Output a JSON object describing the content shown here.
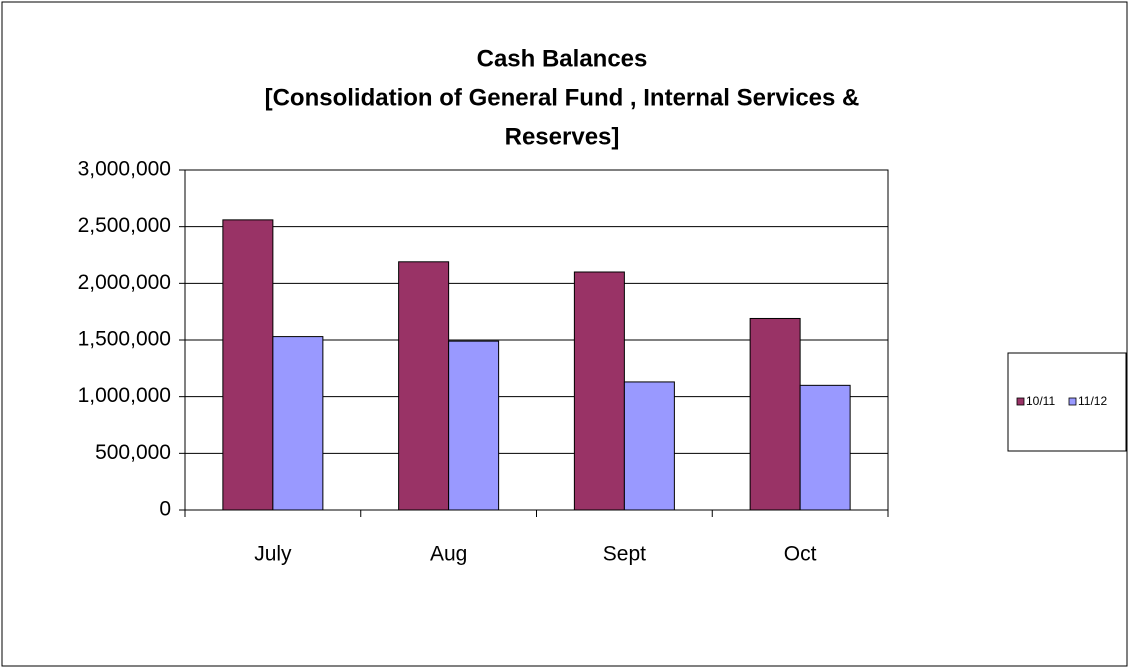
{
  "chart_data": {
    "type": "bar",
    "title": "Cash Balances",
    "subtitle": [
      "[Consolidation of General Fund , Internal Services &",
      "Reserves]"
    ],
    "categories": [
      "July",
      "Aug",
      "Sept",
      "Oct"
    ],
    "series": [
      {
        "name": "10/11",
        "color": "#993366",
        "values": [
          2560000,
          2190000,
          2100000,
          1690000
        ]
      },
      {
        "name": "11/12",
        "color": "#9999ff",
        "values": [
          1530000,
          1490000,
          1130000,
          1100000
        ]
      }
    ],
    "ylim": [
      0,
      3000000
    ],
    "yticks": [
      0,
      {
        "value": 500000,
        "label": "500,000"
      },
      {
        "value": 1000000,
        "label": "1,000,000"
      },
      {
        "value": 1500000,
        "label": "1,500,000"
      },
      {
        "value": 2000000,
        "label": "2,000,000"
      },
      {
        "value": 2500000,
        "label": "2,500,000"
      },
      {
        "value": 3000000,
        "label": "3,000,000"
      }
    ],
    "grid": true,
    "legend": "right"
  }
}
